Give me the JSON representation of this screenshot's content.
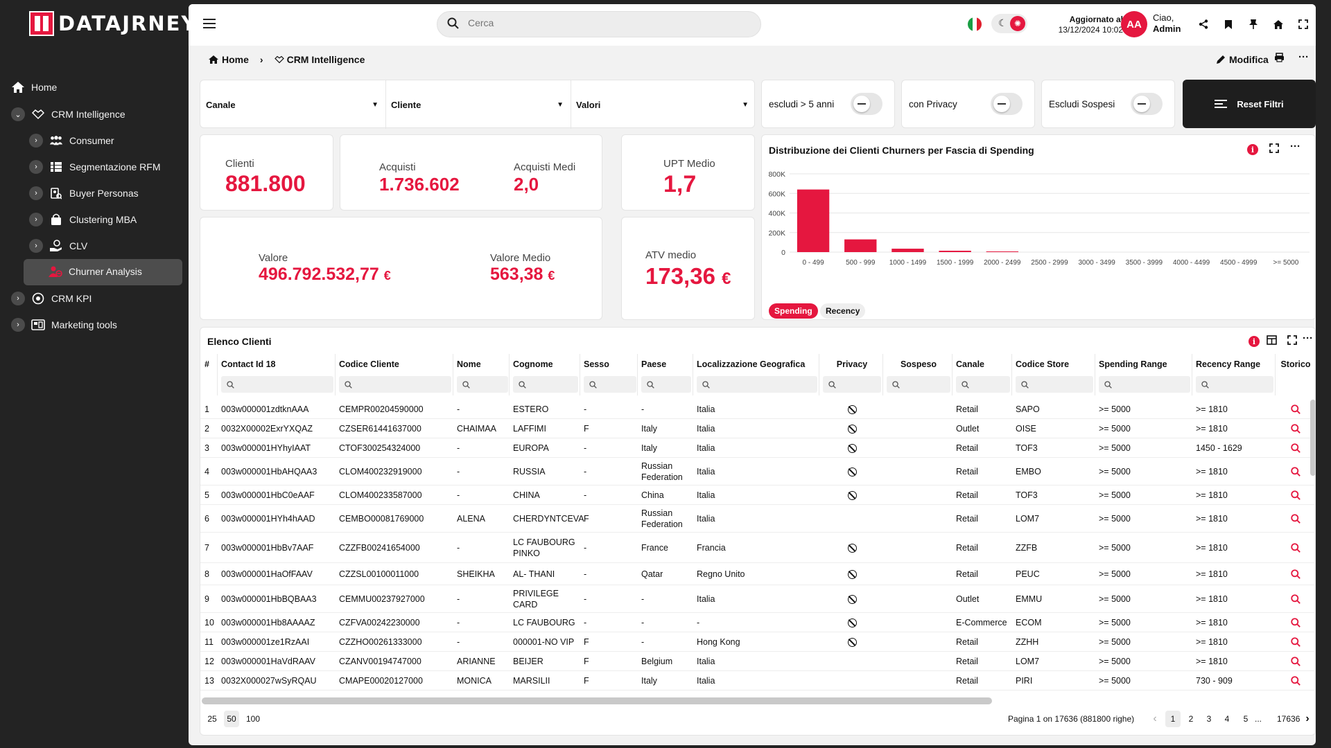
{
  "app": {
    "logo": "DATAJRNEY",
    "accent": "#e5173f"
  },
  "sidebar": {
    "items": [
      {
        "label": "Home",
        "icon": "home-icon"
      },
      {
        "label": "CRM Intelligence",
        "icon": "handshake-icon"
      },
      {
        "label": "Consumer",
        "icon": "people-icon"
      },
      {
        "label": "Segmentazione RFM",
        "icon": "grid-icon"
      },
      {
        "label": "Buyer Personas",
        "icon": "persona-icon"
      },
      {
        "label": "Clustering MBA",
        "icon": "bag-icon"
      },
      {
        "label": "CLV",
        "icon": "hand-coin-icon"
      },
      {
        "label": "Churner Analysis",
        "icon": "churner-icon"
      },
      {
        "label": "CRM KPI",
        "icon": "kpi-icon"
      },
      {
        "label": "Marketing tools",
        "icon": "tools-icon"
      }
    ]
  },
  "topbar": {
    "search_placeholder": "Cerca",
    "updated_label": "Aggiornato al",
    "updated_value": "13/12/2024 10:02",
    "avatar_initials": "AA",
    "greeting": "Ciao,",
    "user": "Admin"
  },
  "breadcrumb": {
    "home": "Home",
    "current": "CRM Intelligence"
  },
  "actions": {
    "modifica": "Modifica"
  },
  "filters": {
    "canale": "Canale",
    "cliente": "Cliente",
    "valori": "Valori",
    "escludi_anni": "escludi > 5 anni",
    "privacy": "con Privacy",
    "sospesi": "Escludi Sospesi",
    "reset": "Reset Filtri"
  },
  "kpis": {
    "clienti_label": "Clienti",
    "clienti": "881.800",
    "acquisti_label": "Acquisti",
    "acquisti": "1.736.602",
    "acquisti_medi_label": "Acquisti Medi",
    "acquisti_medi": "2,0",
    "upt_label": "UPT Medio",
    "upt": "1,7",
    "valore_label": "Valore",
    "valore": "496.792.532,77",
    "valore_medio_label": "Valore Medio",
    "valore_medio": "563,38",
    "atv_label": "ATV medio",
    "atv": "173,36",
    "currency": "€"
  },
  "chart_tabs": {
    "spending": "Spending",
    "recency": "Recency"
  },
  "chart_data": {
    "type": "bar",
    "title": "Distribuzione dei Clienti Churners per Fascia di Spending",
    "categories": [
      "0 - 499",
      "500 - 999",
      "1000 - 1499",
      "1500 - 1999",
      "2000 - 2499",
      "2500 - 2999",
      "3000 - 3499",
      "3500 - 3999",
      "4000 - 4499",
      "4500 - 4999",
      ">= 5000"
    ],
    "values": [
      640000,
      130000,
      35000,
      14000,
      7000,
      0,
      0,
      0,
      0,
      0,
      0
    ],
    "ylim": [
      0,
      800000
    ],
    "yticks": [
      "0",
      "200K",
      "400K",
      "600K",
      "800K"
    ],
    "ytick_values": [
      0,
      200000,
      400000,
      600000,
      800000
    ],
    "color": "#e5173f",
    "grid": true
  },
  "table": {
    "title": "Elenco Clienti",
    "columns": [
      "#",
      "Contact Id 18",
      "Codice Cliente",
      "Nome",
      "Cognome",
      "Sesso",
      "Paese",
      "Localizzazione Geografica",
      "Privacy",
      "Sospeso",
      "Canale",
      "Codice Store",
      "Spending Range",
      "Recency Range",
      "Storico"
    ],
    "rows": [
      {
        "n": "1",
        "id": "003w000001zdtknAAA",
        "codice": "CEMPR00204590000",
        "nome": "-",
        "cognome": "ESTERO",
        "sesso": "-",
        "paese": "-",
        "geo": "Italia",
        "privacy": true,
        "sospeso": "",
        "canale": "Retail",
        "store": "SAPO",
        "spending": ">= 5000",
        "recency": ">= 1810"
      },
      {
        "n": "2",
        "id": "0032X00002ExrYXQAZ",
        "codice": "CZSER61441637000",
        "nome": "CHAIMAA",
        "cognome": "LAFFIMI",
        "sesso": "F",
        "paese": "Italy",
        "geo": "Italia",
        "privacy": true,
        "sospeso": "",
        "canale": "Outlet",
        "store": "OISE",
        "spending": ">= 5000",
        "recency": ">= 1810"
      },
      {
        "n": "3",
        "id": "003w000001HYhyIAAT",
        "codice": "CTOF300254324000",
        "nome": "-",
        "cognome": "EUROPA",
        "sesso": "-",
        "paese": "Italy",
        "geo": "Italia",
        "privacy": true,
        "sospeso": "",
        "canale": "Retail",
        "store": "TOF3",
        "spending": ">= 5000",
        "recency": "1450 - 1629"
      },
      {
        "n": "4",
        "id": "003w000001HbAHQAA3",
        "codice": "CLOM400232919000",
        "nome": "-",
        "cognome": "RUSSIA",
        "sesso": "-",
        "paese": "Russian Federation",
        "geo": "Italia",
        "privacy": true,
        "sospeso": "",
        "canale": "Retail",
        "store": "EMBO",
        "spending": ">= 5000",
        "recency": ">= 1810"
      },
      {
        "n": "5",
        "id": "003w000001HbC0eAAF",
        "codice": "CLOM400233587000",
        "nome": "-",
        "cognome": "CHINA",
        "sesso": "-",
        "paese": "China",
        "geo": "Italia",
        "privacy": true,
        "sospeso": "",
        "canale": "Retail",
        "store": "TOF3",
        "spending": ">= 5000",
        "recency": ">= 1810"
      },
      {
        "n": "6",
        "id": "003w000001HYh4hAAD",
        "codice": "CEMBO00081769000",
        "nome": "ALENA",
        "cognome": "CHERDYNTCEVA",
        "sesso": "F",
        "paese": "Russian Federation",
        "geo": "Italia",
        "privacy": false,
        "sospeso": "",
        "canale": "Retail",
        "store": "LOM7",
        "spending": ">= 5000",
        "recency": ">= 1810"
      },
      {
        "n": "7",
        "id": "003w000001HbBv7AAF",
        "codice": "CZZFB00241654000",
        "nome": "-",
        "cognome": "LC FAUBOURG PINKO",
        "sesso": "-",
        "paese": "France",
        "geo": "Francia",
        "privacy": true,
        "sospeso": "",
        "canale": "Retail",
        "store": "ZZFB",
        "spending": ">= 5000",
        "recency": ">= 1810"
      },
      {
        "n": "8",
        "id": "003w000001HaOfFAAV",
        "codice": "CZZSL00100011000",
        "nome": "SHEIKHA",
        "cognome": "AL- THANI",
        "sesso": "-",
        "paese": "Qatar",
        "geo": "Regno Unito",
        "privacy": true,
        "sospeso": "",
        "canale": "Retail",
        "store": "PEUC",
        "spending": ">= 5000",
        "recency": ">= 1810"
      },
      {
        "n": "9",
        "id": "003w000001HbBQBAA3",
        "codice": "CEMMU00237927000",
        "nome": "-",
        "cognome": "PRIVILEGE CARD",
        "sesso": "-",
        "paese": "-",
        "geo": "Italia",
        "privacy": true,
        "sospeso": "",
        "canale": "Outlet",
        "store": "EMMU",
        "spending": ">= 5000",
        "recency": ">= 1810"
      },
      {
        "n": "10",
        "id": "003w000001Hb8AAAAZ",
        "codice": "CZFVA00242230000",
        "nome": "-",
        "cognome": "LC FAUBOURG",
        "sesso": "-",
        "paese": "-",
        "geo": "-",
        "privacy": true,
        "sospeso": "",
        "canale": "E-Commerce",
        "store": "ECOM",
        "spending": ">= 5000",
        "recency": ">= 1810"
      },
      {
        "n": "11",
        "id": "003w000001ze1RzAAI",
        "codice": "CZZHO00261333000",
        "nome": "-",
        "cognome": "000001-NO VIP",
        "sesso": "F",
        "paese": "-",
        "geo": "Hong Kong",
        "privacy": true,
        "sospeso": "",
        "canale": "Retail",
        "store": "ZZHH",
        "spending": ">= 5000",
        "recency": ">= 1810"
      },
      {
        "n": "12",
        "id": "003w000001HaVdRAAV",
        "codice": "CZANV00194747000",
        "nome": "ARIANNE",
        "cognome": "BEIJER",
        "sesso": "F",
        "paese": "Belgium",
        "geo": "Italia",
        "privacy": false,
        "sospeso": "",
        "canale": "Retail",
        "store": "LOM7",
        "spending": ">= 5000",
        "recency": ">= 1810"
      },
      {
        "n": "13",
        "id": "0032X000027wSyRQAU",
        "codice": "CMAPE00020127000",
        "nome": "MONICA",
        "cognome": "MARSILII",
        "sesso": "F",
        "paese": "Italy",
        "geo": "Italia",
        "privacy": false,
        "sospeso": "",
        "canale": "Retail",
        "store": "PIRI",
        "spending": ">= 5000",
        "recency": "730 - 909"
      }
    ]
  },
  "pagination": {
    "sizes": [
      "25",
      "50",
      "100"
    ],
    "info": "Pagina 1 on 17636 (881800 righe)",
    "pages": [
      "1",
      "2",
      "3",
      "4",
      "5"
    ],
    "ellipsis": "...",
    "last": "17636"
  }
}
